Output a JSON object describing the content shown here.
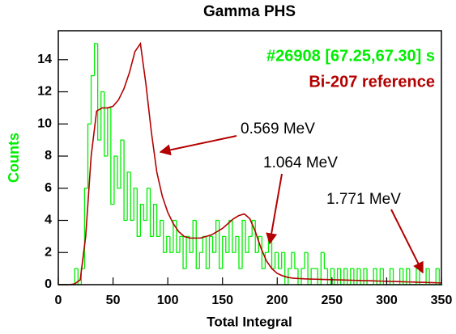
{
  "chart_data": {
    "type": "line",
    "title": "Gamma PHS",
    "xlabel": "Total Integral",
    "ylabel": "Counts",
    "xlim": [
      0,
      350
    ],
    "ylim": [
      0,
      15.8
    ],
    "xticks": [
      0,
      50,
      100,
      150,
      200,
      250,
      300,
      350
    ],
    "yticks": [
      0,
      2,
      4,
      6,
      8,
      10,
      12,
      14
    ],
    "grid": false,
    "legend": "upper right",
    "series": [
      {
        "name": "#26908 [67.25,67.30] s",
        "color": "#00ee00",
        "style": "step",
        "x": [
          0,
          3,
          6,
          9,
          12,
          15,
          18,
          21,
          24,
          27,
          30,
          33,
          36,
          39,
          42,
          45,
          48,
          51,
          54,
          57,
          60,
          63,
          66,
          69,
          72,
          75,
          78,
          81,
          84,
          87,
          90,
          93,
          96,
          99,
          102,
          105,
          108,
          111,
          114,
          117,
          120,
          123,
          126,
          129,
          132,
          135,
          138,
          141,
          144,
          147,
          150,
          153,
          156,
          159,
          162,
          165,
          168,
          171,
          174,
          177,
          180,
          183,
          186,
          189,
          192,
          195,
          198,
          201,
          204,
          207,
          210,
          213,
          216,
          219,
          222,
          225,
          228,
          231,
          234,
          237,
          240,
          243,
          246,
          249,
          252,
          255,
          258,
          261,
          264,
          267,
          270,
          273,
          276,
          279,
          282,
          285,
          288,
          291,
          294,
          297,
          300,
          303,
          306,
          309,
          312,
          315,
          318,
          321,
          324,
          327,
          330,
          333,
          336,
          339,
          342,
          345,
          348
        ],
        "values": [
          0,
          0,
          0,
          0,
          0,
          1,
          0,
          1,
          6,
          10,
          13,
          15,
          9,
          12,
          8,
          11,
          5,
          8,
          6,
          9,
          4,
          7,
          4,
          6,
          3,
          5,
          4,
          6,
          3,
          5,
          3,
          4,
          2,
          3,
          2,
          4,
          2,
          3,
          1,
          3,
          2,
          4,
          1,
          2,
          3,
          1,
          3,
          2,
          4,
          1,
          3,
          2,
          4,
          2,
          3,
          1,
          4,
          2,
          3,
          4,
          2,
          3,
          1,
          2,
          3,
          1,
          2,
          1,
          2,
          0,
          1,
          2,
          1,
          0,
          1,
          2,
          0,
          1,
          1,
          0,
          2,
          1,
          0,
          1,
          0,
          1,
          0,
          1,
          0,
          1,
          0,
          1,
          0,
          1,
          0,
          0,
          1,
          0,
          1,
          0,
          0,
          1,
          0,
          0,
          1,
          0,
          1,
          0,
          0,
          1,
          0,
          0,
          1,
          0,
          0,
          1,
          0
        ]
      },
      {
        "name": "Bi-207 reference",
        "color": "#b30000",
        "style": "line",
        "x": [
          0,
          5,
          10,
          15,
          20,
          25,
          30,
          35,
          40,
          45,
          50,
          55,
          60,
          65,
          70,
          75,
          80,
          85,
          90,
          95,
          100,
          105,
          110,
          115,
          120,
          125,
          130,
          135,
          140,
          145,
          150,
          155,
          160,
          165,
          170,
          175,
          180,
          185,
          190,
          195,
          200,
          205,
          210,
          215,
          220,
          225,
          230,
          235,
          240,
          245,
          250,
          255,
          260,
          265,
          270,
          275,
          280,
          285,
          290,
          295,
          300,
          305,
          310,
          315,
          320,
          325,
          330,
          335,
          340,
          345,
          350
        ],
        "values": [
          0,
          0,
          0,
          0.05,
          0.3,
          3,
          8,
          10.8,
          11,
          11,
          11.1,
          11.5,
          12.2,
          13.2,
          14.5,
          15,
          12.5,
          9.5,
          7,
          5.5,
          4.5,
          3.8,
          3.3,
          3.0,
          2.9,
          2.9,
          2.9,
          3.0,
          3.1,
          3.3,
          3.5,
          3.8,
          4.1,
          4.3,
          4.4,
          4.1,
          3.3,
          2.3,
          1.5,
          1.0,
          0.7,
          0.55,
          0.45,
          0.4,
          0.38,
          0.36,
          0.35,
          0.34,
          0.33,
          0.32,
          0.31,
          0.3,
          0.29,
          0.28,
          0.27,
          0.26,
          0.25,
          0.24,
          0.23,
          0.22,
          0.21,
          0.2,
          0.19,
          0.18,
          0.17,
          0.16,
          0.15,
          0.14,
          0.13,
          0.12,
          0.1
        ]
      }
    ],
    "annotations": [
      "0.569 MeV",
      "1.064 MeV",
      "1.771 MeV"
    ]
  }
}
